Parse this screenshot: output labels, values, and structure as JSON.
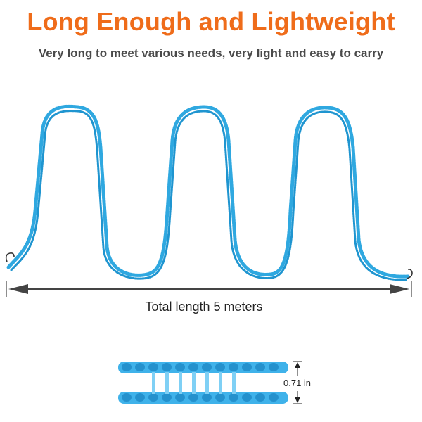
{
  "header": {
    "title": "Long Enough and Lightweight",
    "subtitle": "Very long to meet various needs, very light and easy to carry"
  },
  "rope_diagram": {
    "length_label": "Total length 5 meters",
    "width_label": "0.71 in"
  },
  "colors": {
    "title": "#ef6c1a",
    "subtitle": "#4a4a4a",
    "rope": "#2fa8e0",
    "rope_dark": "#1b7fb8",
    "arrow": "#444444"
  }
}
